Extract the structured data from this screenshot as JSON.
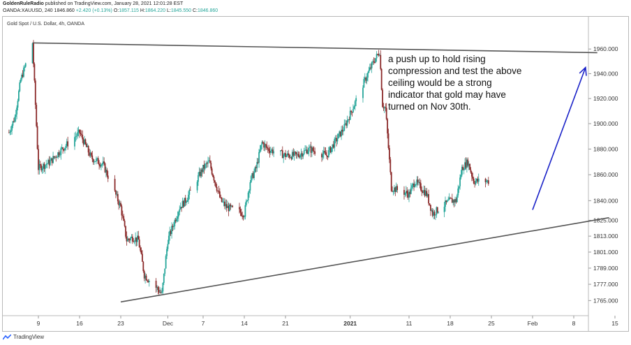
{
  "header": {
    "author": "GoldenRuleRadio",
    "published_text": "published on TradingView.com, January 28, 2021 12:01:28 EST",
    "ticker_line": "OANDA:XAUUSD, 240",
    "last_price": "1846.860",
    "change": "+2.420 (+0.13%)",
    "open_label": "O:",
    "open": "1857.115",
    "high_label": "H:",
    "high": "1864.220",
    "low_label": "L:",
    "low": "1845.550",
    "close_label": "C:",
    "close": "1846.860"
  },
  "chart_title": "Gold Spot / U.S. Dollar, 4h, OANDA",
  "annotation_text": "a push up to hold rising compression and test the above ceiling would be a strong indicator that gold may have turned on Nov 30th.",
  "footer": {
    "brand": "TradingView"
  },
  "colors": {
    "up": "#26a69a",
    "down": "#8b2a2a",
    "trendline": "#555555",
    "arrow": "#1a22c8",
    "text": "#111111"
  },
  "chart_data": {
    "type": "candlestick",
    "title": "Gold Spot / U.S. Dollar, 4h, OANDA",
    "x_ticks": [
      "9",
      "16",
      "23",
      "Dec",
      "7",
      "14",
      "21",
      "2021",
      "11",
      "18",
      "25",
      "Feb",
      "8",
      "15"
    ],
    "y_ticks": [
      "1960.000",
      "1940.000",
      "1920.000",
      "1900.000",
      "1880.000",
      "1860.000",
      "1840.000",
      "1825.000",
      "1813.000",
      "1801.000",
      "1789.000",
      "1777.000",
      "1765.000"
    ],
    "y_scale": "log",
    "ylim": [
      1758,
      1975
    ],
    "price_path": [
      [
        "Nov 4",
        1893
      ],
      [
        "Nov 5",
        1905
      ],
      [
        "Nov 6",
        1935
      ],
      [
        "Nov 8",
        1965
      ],
      [
        "Nov 9",
        1865
      ],
      [
        "Nov 11",
        1870
      ],
      [
        "Nov 13",
        1880
      ],
      [
        "Nov 16",
        1893
      ],
      [
        "Nov 18",
        1873
      ],
      [
        "Nov 20",
        1868
      ],
      [
        "Nov 23",
        1835
      ],
      [
        "Nov 24",
        1810
      ],
      [
        "Nov 25",
        1812
      ],
      [
        "Nov 26",
        1810
      ],
      [
        "Nov 27",
        1784
      ],
      [
        "Nov 30",
        1770
      ],
      [
        "Dec 1",
        1810
      ],
      [
        "Dec 3",
        1835
      ],
      [
        "Dec 4",
        1840
      ],
      [
        "Dec 7",
        1865
      ],
      [
        "Dec 8",
        1870
      ],
      [
        "Dec 10",
        1840
      ],
      [
        "Dec 11",
        1835
      ],
      [
        "Dec 14",
        1830
      ],
      [
        "Dec 15",
        1855
      ],
      [
        "Dec 16",
        1865
      ],
      [
        "Dec 17",
        1885
      ],
      [
        "Dec 18",
        1880
      ],
      [
        "Dec 21",
        1875
      ],
      [
        "Dec 23",
        1875
      ],
      [
        "Dec 25",
        1880
      ],
      [
        "Dec 28",
        1875
      ],
      [
        "Dec 30",
        1890
      ],
      [
        "Dec 31",
        1897
      ],
      [
        "Jan 4",
        1940
      ],
      [
        "Jan 5",
        1950
      ],
      [
        "Jan 6",
        1958
      ],
      [
        "Jan 6b",
        1915
      ],
      [
        "Jan 7",
        1912
      ],
      [
        "Jan 8",
        1850
      ],
      [
        "Jan 11",
        1845
      ],
      [
        "Jan 12",
        1855
      ],
      [
        "Jan 13",
        1850
      ],
      [
        "Jan 14",
        1845
      ],
      [
        "Jan 15",
        1830
      ],
      [
        "Jan 18",
        1840
      ],
      [
        "Jan 19",
        1840
      ],
      [
        "Jan 20",
        1865
      ],
      [
        "Jan 21",
        1870
      ],
      [
        "Jan 22",
        1855
      ],
      [
        "Jan 25",
        1855
      ],
      [
        "Jan 26",
        1850
      ],
      [
        "Jan 27",
        1845
      ],
      [
        "Jan 28",
        1847
      ]
    ],
    "trendlines": [
      {
        "name": "ceiling",
        "from": [
          "Nov 8",
          1965
        ],
        "to": [
          "Feb 12",
          1957
        ]
      },
      {
        "name": "rising support",
        "from": [
          "Nov 23",
          1764
        ],
        "to": [
          "Feb 14",
          1827
        ]
      }
    ],
    "arrow": {
      "from": [
        "Feb 1",
        1833
      ],
      "to": [
        "Feb 10",
        1945
      ]
    }
  }
}
